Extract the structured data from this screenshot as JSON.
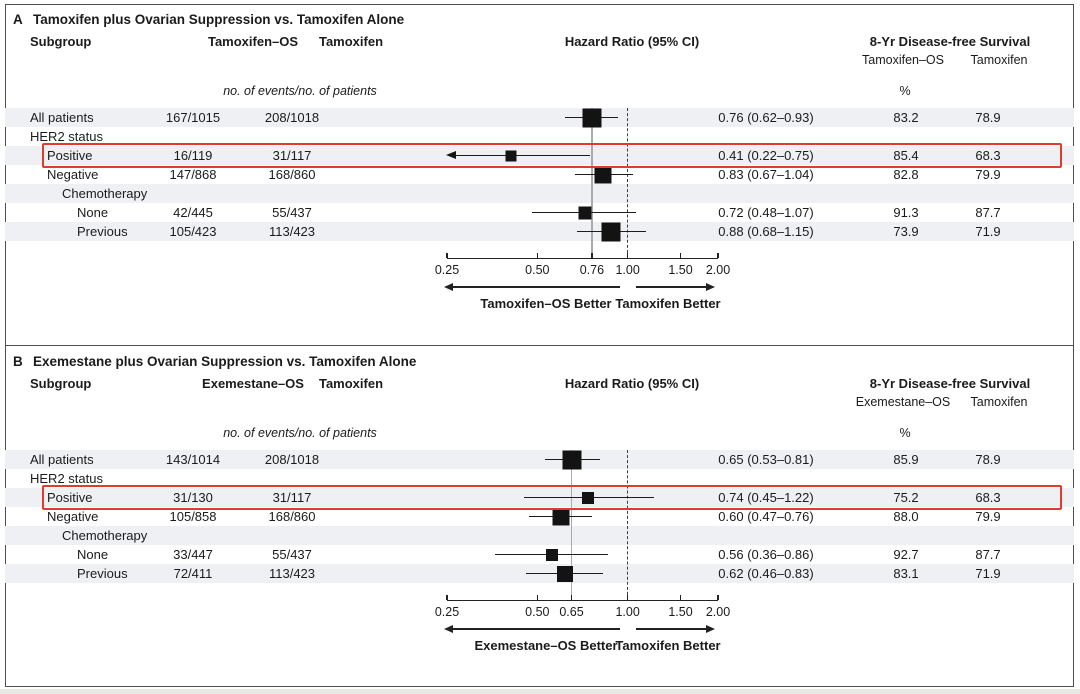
{
  "figure": {
    "border_color": "#4f4f4f",
    "row_shade_color": "#eef0f3",
    "highlight_color": "#e23b2e",
    "panels": [
      {
        "id": "A",
        "label": "A",
        "title": "Tamoxifen plus Ovarian Suppression vs. Tamoxifen Alone",
        "col_subgroup": "Subgroup",
        "col_arm1": "Tamoxifen–OS",
        "col_arm2": "Tamoxifen",
        "col_hr": "Hazard Ratio (95% CI)",
        "col_survival": "8-Yr Disease-free Survival",
        "surv_arm1": "Tamoxifen–OS",
        "surv_arm2": "Tamoxifen",
        "events_note": "no. of events/no. of patients",
        "percent_sign": "%",
        "axis_ticks": [
          "0.25",
          "0.50",
          "0.76",
          "1.00",
          "1.50",
          "2.00"
        ],
        "ref_line": 0.76,
        "null_line": 1.0,
        "left_better": "Tamoxifen–OS Better",
        "right_better": "Tamoxifen Better",
        "rows": [
          {
            "label": "All patients",
            "indent": 0,
            "shaded": true,
            "arm1": "167/1015",
            "arm2": "208/1018",
            "hr": 0.76,
            "lo": 0.62,
            "hi": 0.93,
            "hr_text": "0.76 (0.62–0.93)",
            "surv1": "83.2",
            "surv2": "78.9",
            "w": 19
          },
          {
            "label": "HER2 status",
            "indent": 0,
            "shaded": false
          },
          {
            "label": "Positive",
            "indent": 1,
            "shaded": true,
            "highlight": true,
            "arrow_left": true,
            "arm1": "16/119",
            "arm2": "31/117",
            "hr": 0.41,
            "lo": 0.22,
            "hi": 0.75,
            "hr_text": "0.41 (0.22–0.75)",
            "surv1": "85.4",
            "surv2": "68.3",
            "w": 11
          },
          {
            "label": "Negative",
            "indent": 1,
            "shaded": false,
            "arm1": "147/868",
            "arm2": "168/860",
            "hr": 0.83,
            "lo": 0.67,
            "hi": 1.04,
            "hr_text": "0.83 (0.67–1.04)",
            "surv1": "82.8",
            "surv2": "79.9",
            "w": 17
          },
          {
            "label": "Chemotherapy",
            "indent": 2,
            "shaded": true
          },
          {
            "label": "None",
            "indent": 3,
            "shaded": false,
            "arm1": "42/445",
            "arm2": "55/437",
            "hr": 0.72,
            "lo": 0.48,
            "hi": 1.07,
            "hr_text": "0.72 (0.48–1.07)",
            "surv1": "91.3",
            "surv2": "87.7",
            "w": 13
          },
          {
            "label": "Previous",
            "indent": 3,
            "shaded": true,
            "arm1": "105/423",
            "arm2": "113/423",
            "hr": 0.88,
            "lo": 0.68,
            "hi": 1.15,
            "hr_text": "0.88 (0.68–1.15)",
            "surv1": "73.9",
            "surv2": "71.9",
            "w": 19
          }
        ]
      },
      {
        "id": "B",
        "label": "B",
        "title": "Exemestane plus Ovarian Suppression vs. Tamoxifen Alone",
        "col_subgroup": "Subgroup",
        "col_arm1": "Exemestane–OS",
        "col_arm2": "Tamoxifen",
        "col_hr": "Hazard Ratio (95% CI)",
        "col_survival": "8-Yr Disease-free Survival",
        "surv_arm1": "Exemestane–OS",
        "surv_arm2": "Tamoxifen",
        "events_note": "no. of events/no. of patients",
        "percent_sign": "%",
        "axis_ticks": [
          "0.25",
          "0.50",
          "0.65",
          "1.00",
          "1.50",
          "2.00"
        ],
        "ref_line": 0.65,
        "null_line": 1.0,
        "left_better": "Exemestane–OS Better",
        "right_better": "Tamoxifen Better",
        "rows": [
          {
            "label": "All patients",
            "indent": 0,
            "shaded": true,
            "arm1": "143/1014",
            "arm2": "208/1018",
            "hr": 0.65,
            "lo": 0.53,
            "hi": 0.81,
            "hr_text": "0.65 (0.53–0.81)",
            "surv1": "85.9",
            "surv2": "78.9",
            "w": 19
          },
          {
            "label": "HER2 status",
            "indent": 0,
            "shaded": false
          },
          {
            "label": "Positive",
            "indent": 1,
            "shaded": true,
            "highlight": true,
            "arm1": "31/130",
            "arm2": "31/117",
            "hr": 0.74,
            "lo": 0.45,
            "hi": 1.22,
            "hr_text": "0.74 (0.45–1.22)",
            "surv1": "75.2",
            "surv2": "68.3",
            "w": 12
          },
          {
            "label": "Negative",
            "indent": 1,
            "shaded": false,
            "arm1": "105/858",
            "arm2": "168/860",
            "hr": 0.6,
            "lo": 0.47,
            "hi": 0.76,
            "hr_text": "0.60 (0.47–0.76)",
            "surv1": "88.0",
            "surv2": "79.9",
            "w": 17
          },
          {
            "label": "Chemotherapy",
            "indent": 2,
            "shaded": true
          },
          {
            "label": "None",
            "indent": 3,
            "shaded": false,
            "arm1": "33/447",
            "arm2": "55/437",
            "hr": 0.56,
            "lo": 0.36,
            "hi": 0.86,
            "hr_text": "0.56 (0.36–0.86)",
            "surv1": "92.7",
            "surv2": "87.7",
            "w": 12
          },
          {
            "label": "Previous",
            "indent": 3,
            "shaded": true,
            "arm1": "72/411",
            "arm2": "113/423",
            "hr": 0.62,
            "lo": 0.46,
            "hi": 0.83,
            "hr_text": "0.62 (0.46–0.83)",
            "surv1": "83.1",
            "surv2": "71.9",
            "w": 16
          }
        ]
      }
    ]
  },
  "chart_data": [
    {
      "type": "scatter",
      "variant": "forest-plot",
      "title": "A  Tamoxifen plus Ovarian Suppression vs. Tamoxifen Alone",
      "xlabel": "Hazard Ratio (95% CI)",
      "x_scale": "log",
      "xlim": [
        0.25,
        2.0
      ],
      "x_ticks": [
        0.25,
        0.5,
        0.76,
        1.0,
        1.5,
        2.0
      ],
      "reference_line_overall_hr": 0.76,
      "null_line": 1.0,
      "direction_labels": {
        "left": "Tamoxifen–OS Better",
        "right": "Tamoxifen Better"
      },
      "columns": [
        "Subgroup",
        "Tamoxifen–OS no. of events/no. of patients",
        "Tamoxifen no. of events/no. of patients",
        "Hazard Ratio (95% CI)",
        "8-Yr DFS Tamoxifen–OS %",
        "8-Yr DFS Tamoxifen %"
      ],
      "rows": [
        {
          "section": "",
          "subgroup": "All patients",
          "events_arm1": "167/1015",
          "events_arm2": "208/1018",
          "hr": 0.76,
          "ci": [
            0.62,
            0.93
          ],
          "dfs_arm1_pct": 83.2,
          "dfs_arm2_pct": 78.9
        },
        {
          "section": "HER2 status",
          "subgroup": "Positive",
          "events_arm1": "16/119",
          "events_arm2": "31/117",
          "hr": 0.41,
          "ci": [
            0.22,
            0.75
          ],
          "dfs_arm1_pct": 85.4,
          "dfs_arm2_pct": 68.3,
          "highlighted": true,
          "ci_clipped_left": true
        },
        {
          "section": "HER2 status",
          "subgroup": "Negative",
          "events_arm1": "147/868",
          "events_arm2": "168/860",
          "hr": 0.83,
          "ci": [
            0.67,
            1.04
          ],
          "dfs_arm1_pct": 82.8,
          "dfs_arm2_pct": 79.9
        },
        {
          "section": "Chemotherapy",
          "subgroup": "None",
          "events_arm1": "42/445",
          "events_arm2": "55/437",
          "hr": 0.72,
          "ci": [
            0.48,
            1.07
          ],
          "dfs_arm1_pct": 91.3,
          "dfs_arm2_pct": 87.7
        },
        {
          "section": "Chemotherapy",
          "subgroup": "Previous",
          "events_arm1": "105/423",
          "events_arm2": "113/423",
          "hr": 0.88,
          "ci": [
            0.68,
            1.15
          ],
          "dfs_arm1_pct": 73.9,
          "dfs_arm2_pct": 71.9
        }
      ]
    },
    {
      "type": "scatter",
      "variant": "forest-plot",
      "title": "B  Exemestane plus Ovarian Suppression vs. Tamoxifen Alone",
      "xlabel": "Hazard Ratio (95% CI)",
      "x_scale": "log",
      "xlim": [
        0.25,
        2.0
      ],
      "x_ticks": [
        0.25,
        0.5,
        0.65,
        1.0,
        1.5,
        2.0
      ],
      "reference_line_overall_hr": 0.65,
      "null_line": 1.0,
      "direction_labels": {
        "left": "Exemestane–OS Better",
        "right": "Tamoxifen Better"
      },
      "columns": [
        "Subgroup",
        "Exemestane–OS no. of events/no. of patients",
        "Tamoxifen no. of events/no. of patients",
        "Hazard Ratio (95% CI)",
        "8-Yr DFS Exemestane–OS %",
        "8-Yr DFS Tamoxifen %"
      ],
      "rows": [
        {
          "section": "",
          "subgroup": "All patients",
          "events_arm1": "143/1014",
          "events_arm2": "208/1018",
          "hr": 0.65,
          "ci": [
            0.53,
            0.81
          ],
          "dfs_arm1_pct": 85.9,
          "dfs_arm2_pct": 78.9
        },
        {
          "section": "HER2 status",
          "subgroup": "Positive",
          "events_arm1": "31/130",
          "events_arm2": "31/117",
          "hr": 0.74,
          "ci": [
            0.45,
            1.22
          ],
          "dfs_arm1_pct": 75.2,
          "dfs_arm2_pct": 68.3,
          "highlighted": true
        },
        {
          "section": "HER2 status",
          "subgroup": "Negative",
          "events_arm1": "105/858",
          "events_arm2": "168/860",
          "hr": 0.6,
          "ci": [
            0.47,
            0.76
          ],
          "dfs_arm1_pct": 88.0,
          "dfs_arm2_pct": 79.9
        },
        {
          "section": "Chemotherapy",
          "subgroup": "None",
          "events_arm1": "33/447",
          "events_arm2": "55/437",
          "hr": 0.56,
          "ci": [
            0.36,
            0.86
          ],
          "dfs_arm1_pct": 92.7,
          "dfs_arm2_pct": 87.7
        },
        {
          "section": "Chemotherapy",
          "subgroup": "Previous",
          "events_arm1": "72/411",
          "events_arm2": "113/423",
          "hr": 0.62,
          "ci": [
            0.46,
            0.83
          ],
          "dfs_arm1_pct": 83.1,
          "dfs_arm2_pct": 71.9
        }
      ]
    }
  ]
}
